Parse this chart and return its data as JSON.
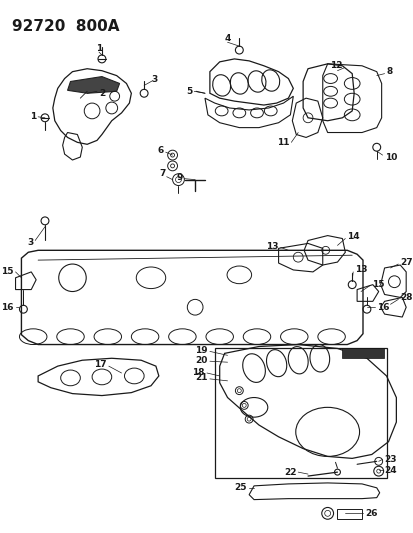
{
  "title": "92720  800A",
  "bg_color": "#ffffff",
  "line_color": "#1a1a1a",
  "title_fontsize": 11,
  "label_fontsize": 6.5,
  "fig_width": 4.14,
  "fig_height": 5.33,
  "dpi": 100
}
